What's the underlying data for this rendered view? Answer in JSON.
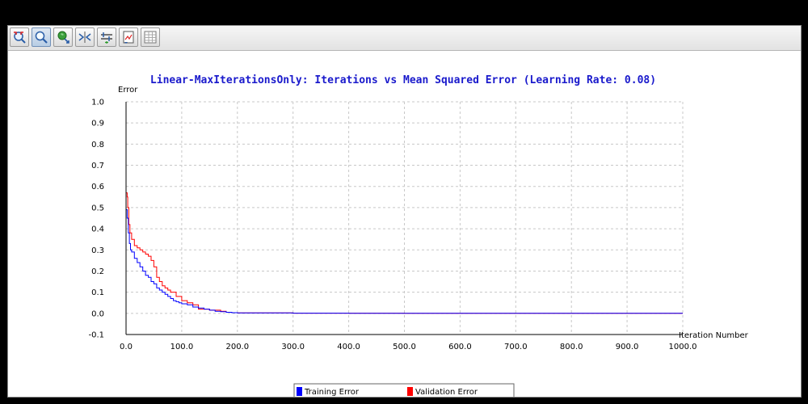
{
  "toolbar": {
    "buttons": [
      {
        "name": "reset-zoom-button",
        "icon": "reset-zoom-icon"
      },
      {
        "name": "zoom-button",
        "icon": "zoom-icon",
        "active": true
      },
      {
        "name": "pan-button",
        "icon": "pan-icon"
      },
      {
        "name": "scale-button",
        "icon": "scale-icon"
      },
      {
        "name": "set-range-button",
        "icon": "set-range-icon"
      },
      {
        "name": "save-button",
        "icon": "save-icon"
      },
      {
        "name": "table-button",
        "icon": "table-icon"
      }
    ]
  },
  "chart_data": {
    "type": "line",
    "title": "Linear-MaxIterationsOnly: Iterations vs Mean Squared Error (Learning Rate: 0.08)",
    "xlabel": "Iteration Number",
    "ylabel": "Error",
    "xlim": [
      0,
      1000
    ],
    "ylim": [
      -0.1,
      1.0
    ],
    "xticks": [
      "0.0",
      "100.0",
      "200.0",
      "300.0",
      "400.0",
      "500.0",
      "600.0",
      "700.0",
      "800.0",
      "900.0",
      "1000.0"
    ],
    "yticks": [
      "-0.1",
      "0.0",
      "0.1",
      "0.2",
      "0.3",
      "0.4",
      "0.5",
      "0.6",
      "0.7",
      "0.8",
      "0.9",
      "1.0"
    ],
    "grid": true,
    "legend": "bottom-center",
    "series": [
      {
        "name": "Training Error",
        "color": "#0000ff",
        "x": [
          0,
          2,
          4,
          6,
          8,
          10,
          15,
          20,
          25,
          30,
          35,
          40,
          45,
          50,
          55,
          60,
          65,
          70,
          75,
          80,
          85,
          90,
          95,
          100,
          110,
          120,
          130,
          140,
          150,
          160,
          170,
          180,
          190,
          200,
          300,
          400,
          500,
          600,
          700,
          800,
          900,
          1000
        ],
        "values": [
          0.49,
          0.45,
          0.38,
          0.33,
          0.3,
          0.29,
          0.26,
          0.24,
          0.22,
          0.2,
          0.18,
          0.17,
          0.15,
          0.14,
          0.12,
          0.11,
          0.1,
          0.09,
          0.08,
          0.07,
          0.06,
          0.055,
          0.05,
          0.045,
          0.04,
          0.03,
          0.025,
          0.02,
          0.015,
          0.01,
          0.008,
          0.005,
          0.003,
          0.002,
          0.001,
          0.0005,
          0.0004,
          0.0003,
          0.0003,
          0.0002,
          0.0002,
          0.0002
        ]
      },
      {
        "name": "Validation Error",
        "color": "#ff0000",
        "x": [
          0,
          2,
          3,
          5,
          7,
          10,
          15,
          20,
          25,
          30,
          35,
          40,
          45,
          50,
          55,
          60,
          65,
          70,
          75,
          80,
          90,
          100,
          110,
          120,
          130,
          140,
          150,
          160,
          170,
          180,
          190,
          200,
          300,
          400,
          500,
          600,
          700,
          800,
          900,
          1000
        ],
        "values": [
          0.57,
          0.55,
          0.5,
          0.42,
          0.38,
          0.35,
          0.32,
          0.31,
          0.3,
          0.29,
          0.28,
          0.27,
          0.25,
          0.22,
          0.17,
          0.15,
          0.13,
          0.12,
          0.11,
          0.1,
          0.08,
          0.06,
          0.05,
          0.04,
          0.02,
          0.02,
          0.015,
          0.015,
          0.01,
          0.005,
          0.003,
          0.002,
          0.001,
          0.0008,
          0.0006,
          0.0005,
          0.0005,
          0.0004,
          0.0004,
          0.0004
        ]
      }
    ]
  }
}
